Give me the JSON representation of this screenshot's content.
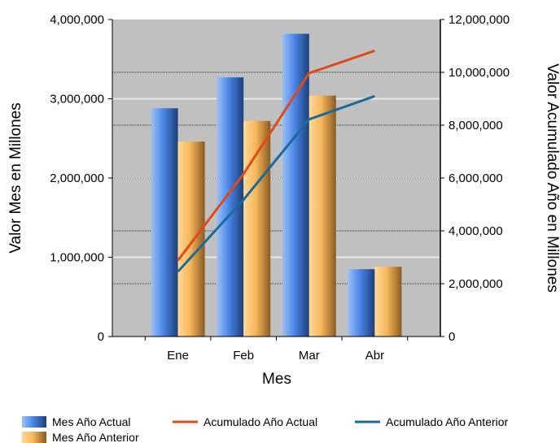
{
  "chart_data": {
    "type": "bar+line",
    "categories": [
      "Ene",
      "Feb",
      "Mar",
      "Abr"
    ],
    "xlabel": "Mes",
    "ylabel_left": "Valor Mes en Millones",
    "ylabel_right": "Valor Acumulado Año en Millones",
    "ylim_left": [
      0,
      4000000
    ],
    "ylim_right": [
      0,
      12000000
    ],
    "yticks_left": [
      "0",
      "1,000,000",
      "2,000,000",
      "3,000,000",
      "4,000,000"
    ],
    "yticks_right": [
      "0",
      "2,000,000",
      "4,000,000",
      "6,000,000",
      "8,000,000",
      "10,000,000",
      "12,000,000"
    ],
    "grid": true,
    "legend_position": "bottom",
    "bar_series": [
      {
        "name": "Mes Año Actual",
        "axis": "left",
        "color": "#4a86e8",
        "values": [
          2880000,
          3270000,
          3820000,
          850000
        ]
      },
      {
        "name": "Mes Año Anterior",
        "axis": "left",
        "color": "#f6b75a",
        "values": [
          2460000,
          2720000,
          3040000,
          880000
        ]
      }
    ],
    "line_series": [
      {
        "name": "Acumulado Año Actual",
        "axis": "right",
        "color": "#e04a1a",
        "values": [
          2880000,
          6150000,
          9970000,
          10820000
        ]
      },
      {
        "name": "Acumulado Año Anterior",
        "axis": "right",
        "color": "#1a6a9a",
        "values": [
          2460000,
          5180000,
          8220000,
          9100000
        ]
      }
    ]
  }
}
